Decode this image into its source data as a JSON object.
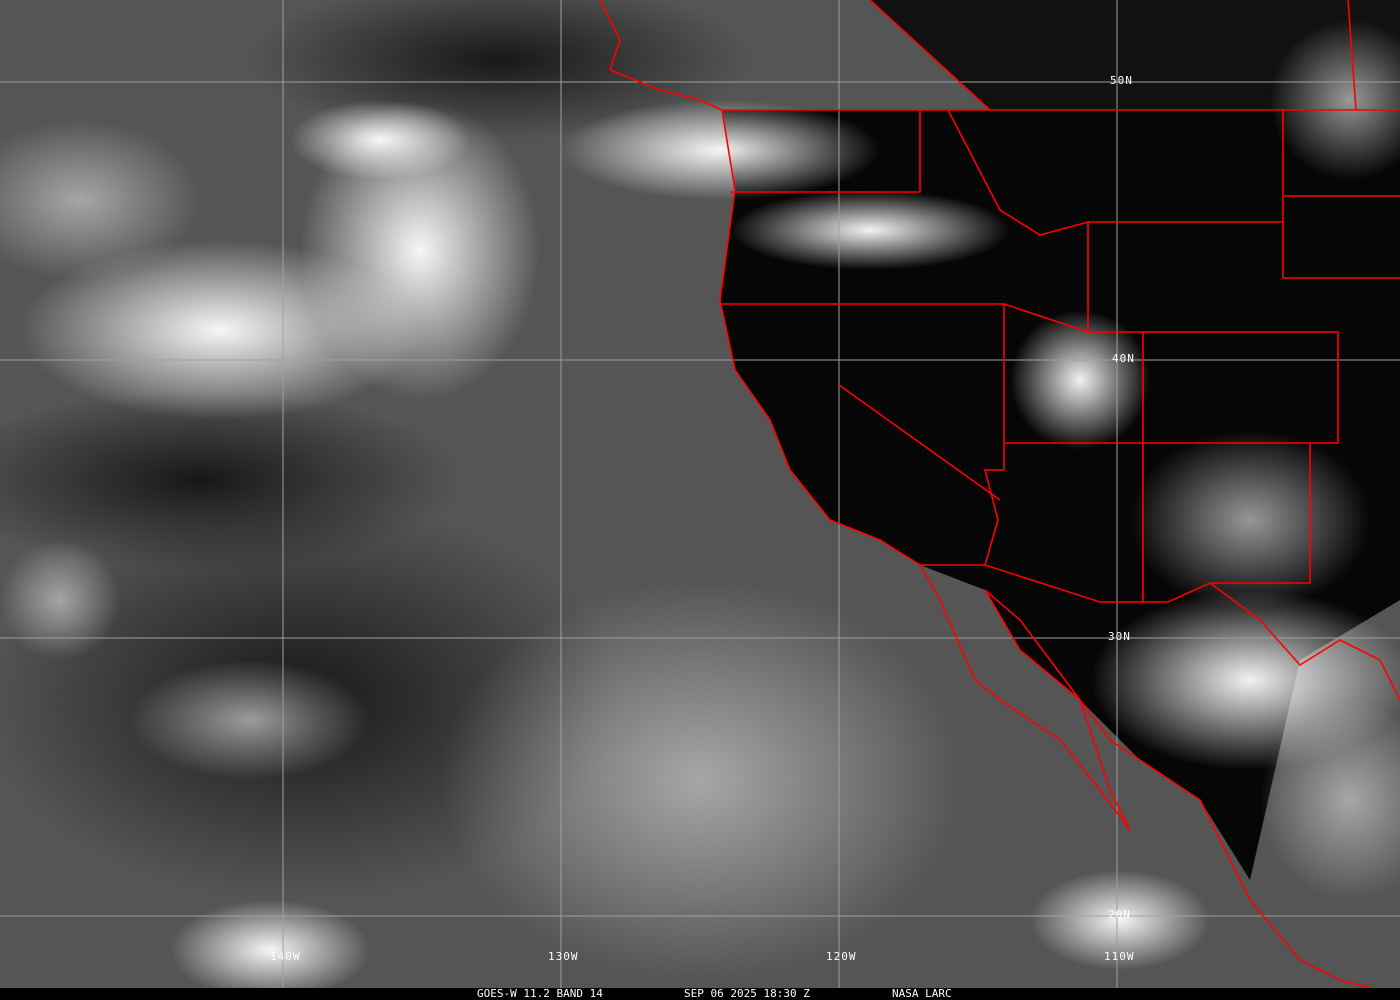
{
  "image": {
    "caption": {
      "satellite": "GOES-W 11.2 BAND 14",
      "datetime": "SEP 06 2025 18:30 Z",
      "source": "NASA LARC"
    },
    "lat_labels": [
      "50N",
      "40N",
      "30N",
      "20N"
    ],
    "lon_labels": [
      "140W",
      "130W",
      "120W",
      "110W"
    ],
    "colors": {
      "boundary": "#ff0000",
      "grid": "#a0a0a0",
      "land": "#050505"
    }
  }
}
